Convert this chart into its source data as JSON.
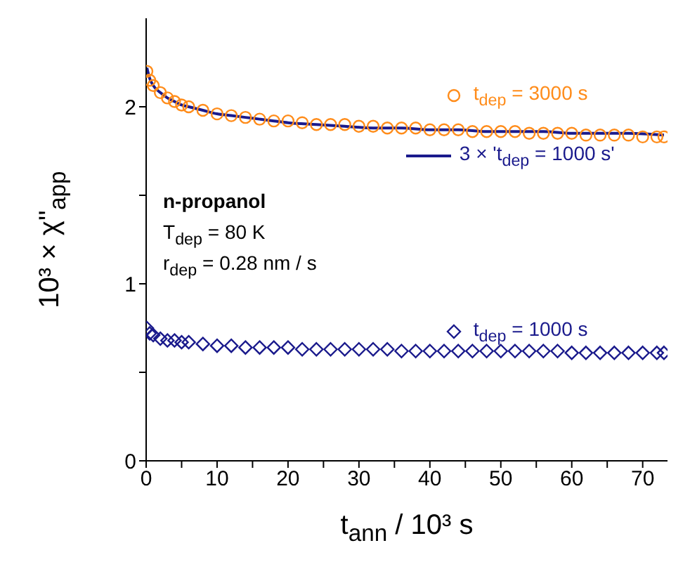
{
  "chart_data": {
    "type": "scatter",
    "xlabel": "t$_{ann}$ / 10³ s",
    "ylabel": "10³ × χ''$_{app}$",
    "annotations": [
      "n-propanol",
      "T$_{dep}$ = 80 K",
      "r$_{dep}$ = 0.28 nm / s"
    ],
    "xlim": [
      0,
      73.5
    ],
    "xticks": [
      0,
      {
        "value": 5,
        "label": null
      },
      10,
      {
        "value": 15,
        "label": null
      },
      20,
      {
        "value": 25,
        "label": null
      },
      30,
      {
        "value": 35,
        "label": null
      },
      40,
      {
        "value": 45,
        "label": null
      },
      50,
      {
        "value": 55,
        "label": null
      },
      60,
      {
        "value": 65,
        "label": null
      },
      70
    ],
    "ylim": [
      0,
      2.5
    ],
    "yticks": [
      0,
      {
        "value": 0.5,
        "label": null
      },
      1,
      {
        "value": 1.5,
        "label": null
      },
      2
    ],
    "grid": false,
    "legend": "right",
    "series": [
      {
        "name": "t$_{dep}$ = 3000 s",
        "marker": "circle",
        "color": "#ff8c1a",
        "x": [
          0.1,
          0.5,
          1,
          2,
          3,
          4,
          5,
          6,
          8,
          10,
          12,
          14,
          16,
          18,
          20,
          22,
          24,
          26,
          28,
          30,
          32,
          34,
          36,
          38,
          40,
          42,
          44,
          46,
          48,
          50,
          52,
          54,
          56,
          58,
          60,
          62,
          64,
          66,
          68,
          70,
          72,
          73
        ],
        "values": [
          2.2,
          2.15,
          2.12,
          2.08,
          2.05,
          2.03,
          2.01,
          2.0,
          1.98,
          1.96,
          1.95,
          1.94,
          1.93,
          1.92,
          1.92,
          1.91,
          1.9,
          1.9,
          1.9,
          1.89,
          1.89,
          1.88,
          1.88,
          1.88,
          1.87,
          1.87,
          1.87,
          1.86,
          1.86,
          1.86,
          1.86,
          1.85,
          1.85,
          1.85,
          1.85,
          1.84,
          1.84,
          1.84,
          1.84,
          1.83,
          1.83,
          1.83
        ]
      },
      {
        "name": "3 × 't$_{dep}$ = 1000 s'",
        "type": "line",
        "marker": "none",
        "line_style": "solid",
        "color": "#1a1a8c",
        "x": [
          0.1,
          0.5,
          1,
          2,
          3,
          4,
          5,
          6,
          8,
          10,
          12,
          14,
          16,
          18,
          20,
          24,
          28,
          32,
          36,
          40,
          44,
          48,
          52,
          56,
          60,
          64,
          68,
          73
        ],
        "values": [
          2.22,
          2.16,
          2.12,
          2.08,
          2.05,
          2.03,
          2.01,
          2.0,
          1.98,
          1.96,
          1.95,
          1.94,
          1.93,
          1.92,
          1.91,
          1.9,
          1.89,
          1.88,
          1.88,
          1.87,
          1.87,
          1.86,
          1.86,
          1.86,
          1.85,
          1.85,
          1.85,
          1.84
        ]
      },
      {
        "name": "t$_{dep}$ = 1000 s",
        "marker": "diamond",
        "color": "#1a1a8c",
        "x": [
          0.1,
          0.5,
          1,
          2,
          3,
          4,
          5,
          6,
          8,
          10,
          12,
          14,
          16,
          18,
          20,
          22,
          24,
          26,
          28,
          30,
          32,
          34,
          36,
          38,
          40,
          42,
          44,
          46,
          48,
          50,
          52,
          54,
          56,
          58,
          60,
          62,
          64,
          66,
          68,
          70,
          72,
          73
        ],
        "values": [
          0.75,
          0.72,
          0.71,
          0.69,
          0.68,
          0.68,
          0.67,
          0.67,
          0.66,
          0.65,
          0.65,
          0.64,
          0.64,
          0.64,
          0.64,
          0.63,
          0.63,
          0.63,
          0.63,
          0.63,
          0.63,
          0.63,
          0.62,
          0.62,
          0.62,
          0.62,
          0.62,
          0.62,
          0.62,
          0.62,
          0.62,
          0.62,
          0.62,
          0.62,
          0.61,
          0.61,
          0.61,
          0.61,
          0.61,
          0.61,
          0.61,
          0.61
        ]
      }
    ]
  }
}
